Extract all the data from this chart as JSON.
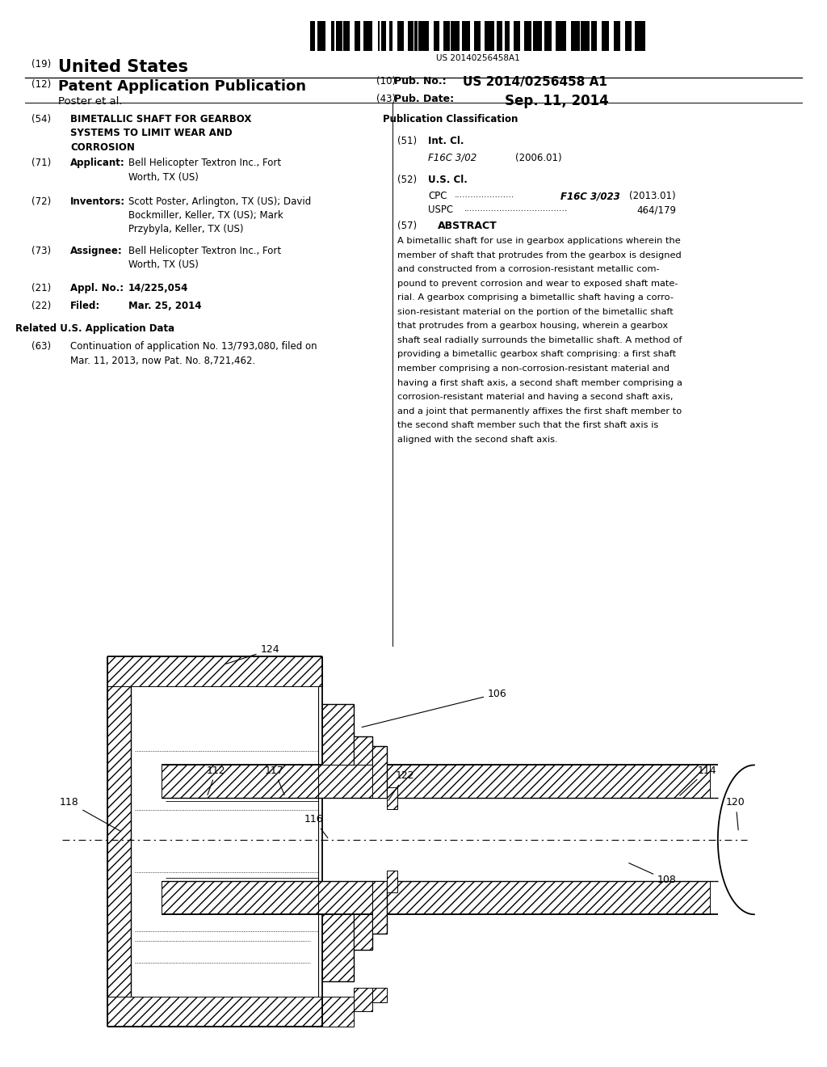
{
  "background_color": "#ffffff",
  "barcode_text": "US 20140256458A1",
  "title_19": "(19)",
  "title_19_text": "United States",
  "title_12": "(12)",
  "title_12_text": "Patent Application Publication",
  "pub_no_num": "(10)",
  "pub_no_key": "Pub. No.:",
  "pub_no_val": "US 2014/0256458 A1",
  "pub_date_num": "(43)",
  "pub_date_key": "Pub. Date:",
  "pub_date_val": "Sep. 11, 2014",
  "poster": "Poster et al.",
  "s54_num": "(54)",
  "s54_line1": "BIMETALLIC SHAFT FOR GEARBOX",
  "s54_line2": "SYSTEMS TO LIMIT WEAR AND",
  "s54_line3": "CORROSION",
  "s71_num": "(71)",
  "s71_key": "Applicant:",
  "s71_line1": "Bell Helicopter Textron Inc., Fort",
  "s71_line2": "Worth, TX (US)",
  "s72_num": "(72)",
  "s72_key": "Inventors:",
  "s72_line1": "Scott Poster, Arlington, TX (US); David",
  "s72_line2": "Bockmiller, Keller, TX (US); Mark",
  "s72_line3": "Przybyla, Keller, TX (US)",
  "s73_num": "(73)",
  "s73_key": "Assignee:",
  "s73_line1": "Bell Helicopter Textron Inc., Fort",
  "s73_line2": "Worth, TX (US)",
  "s21_num": "(21)",
  "s21_key": "Appl. No.:",
  "s21_val": "14/225,054",
  "s22_num": "(22)",
  "s22_key": "Filed:",
  "s22_val": "Mar. 25, 2014",
  "related_header": "Related U.S. Application Data",
  "s63_num": "(63)",
  "s63_line1": "Continuation of application No. 13/793,080, filed on",
  "s63_line2": "Mar. 11, 2013, now Pat. No. 8,721,462.",
  "pub_class_header": "Publication Classification",
  "s51_num": "(51)",
  "s51_key": "Int. Cl.",
  "s51_class": "F16C 3/02",
  "s51_year": "(2006.01)",
  "s52_num": "(52)",
  "s52_key": "U.S. Cl.",
  "s52_cpc": "CPC",
  "s52_cpc_val": "F16C 3/023",
  "s52_cpc_year": "(2013.01)",
  "s52_uspc": "USPC",
  "s52_uspc_val": "464/179",
  "s57_num": "(57)",
  "s57_header": "ABSTRACT",
  "abs_lines": [
    "A bimetallic shaft for use in gearbox applications wherein the",
    "member of shaft that protrudes from the gearbox is designed",
    "and constructed from a corrosion-resistant metallic com-",
    "pound to prevent corrosion and wear to exposed shaft mate-",
    "rial. A gearbox comprising a bimetallic shaft having a corro-",
    "sion-resistant material on the portion of the bimetallic shaft",
    "that protrudes from a gearbox housing, wherein a gearbox",
    "shaft seal radially surrounds the bimetallic shaft. A method of",
    "providing a bimetallic gearbox shaft comprising: a first shaft",
    "member comprising a non-corrosion-resistant material and",
    "having a first shaft axis, a second shaft member comprising a",
    "corrosion-resistant material and having a second shaft axis,",
    "and a joint that permanently affixes the first shaft member to",
    "the second shaft member such that the first shaft axis is",
    "aligned with the second shaft axis."
  ]
}
